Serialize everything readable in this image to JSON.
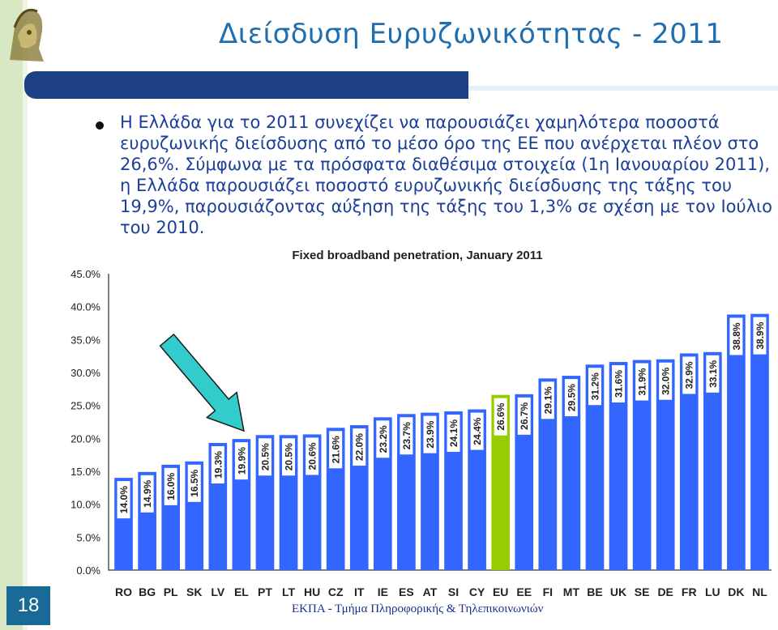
{
  "slide": {
    "title": "Διείσδυση Ευρυζωνικότητας - 2011",
    "bullet_text": "Η Ελλάδα για το 2011 συνεχίζει να παρουσιάζει χαμηλότερα ποσοστά ευρυζωνικής διείσδυσης από το μέσο όρο της ΕΕ που ανέρχεται πλέον στο 26,6%. Σύμφωνα με τα πρόσφατα διαθέσιμα στοιχεία (1η Ιανουαρίου 2011), η Ελλάδα παρουσιάζει ποσοστό ευρυζωνικής διείσδυσης της τάξης του 19,9%, παρουσιάζοντας αύξηση της τάξης του 1,3% σε σχέση με τον Ιούλιο του 2010.",
    "slide_number": "18",
    "footer": "ΕΚΠΑ - Τμήμα Πληροφορικής & Τηλεπικοινωνιών"
  },
  "colors": {
    "bar": "#3366ff",
    "highlight": "#99cc00",
    "title": "#1f6fb0",
    "text": "#1c3f9a",
    "arrow": "#33cccc"
  },
  "chart_data": {
    "type": "bar",
    "title": "Fixed broadband penetration, January 2011",
    "categories": [
      "RO",
      "BG",
      "PL",
      "SK",
      "LV",
      "EL",
      "PT",
      "LT",
      "HU",
      "CZ",
      "IT",
      "IE",
      "ES",
      "AT",
      "SI",
      "CY",
      "EU",
      "EE",
      "FI",
      "MT",
      "BE",
      "UK",
      "SE",
      "DE",
      "FR",
      "LU",
      "DK",
      "NL"
    ],
    "values": [
      14.0,
      14.9,
      16.0,
      16.5,
      19.3,
      19.9,
      20.5,
      20.5,
      20.6,
      21.6,
      22.0,
      23.2,
      23.7,
      23.9,
      24.1,
      24.4,
      26.6,
      26.7,
      29.1,
      29.5,
      31.2,
      31.6,
      31.9,
      32.0,
      32.9,
      33.1,
      38.8,
      38.9
    ],
    "data_labels": [
      "14.0%",
      "14.9%",
      "16.0%",
      "16.5%",
      "19.3%",
      "19.9%",
      "20.5%",
      "20.5%",
      "20.6%",
      "21.6%",
      "22.0%",
      "23.2%",
      "23.7%",
      "23.9%",
      "24.1%",
      "24.4%",
      "26.6%",
      "26.7%",
      "29.1%",
      "29.5%",
      "31.2%",
      "31.6%",
      "31.9%",
      "32.0%",
      "32.9%",
      "33.1%",
      "38.8%",
      "38.9%"
    ],
    "highlight_category": "EU",
    "pointed_category": "EL",
    "ylim": [
      0,
      45
    ],
    "y_ticks": [
      "0.0%",
      "5.0%",
      "10.0%",
      "15.0%",
      "20.0%",
      "25.0%",
      "30.0%",
      "35.0%",
      "40.0%",
      "45.0%"
    ],
    "grid": false,
    "legend": "none",
    "xlabel": "",
    "ylabel": ""
  }
}
